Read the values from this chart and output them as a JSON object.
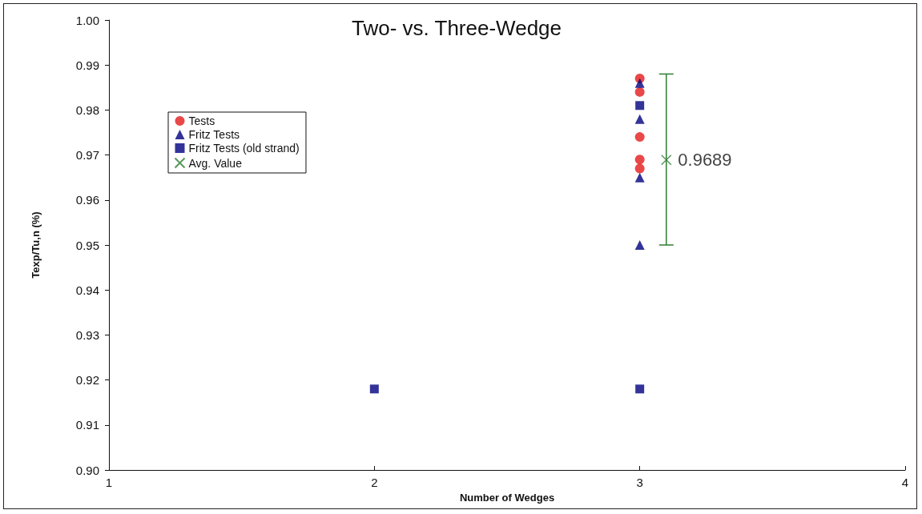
{
  "chart_data": {
    "type": "scatter",
    "title": "Two- vs. Three-Wedge",
    "xlabel": "Number of Wedges",
    "ylabel": "Texp/Tu,n (%)",
    "xlim": [
      1,
      4
    ],
    "xticks": [
      1,
      2,
      3,
      4
    ],
    "ylim": [
      0.9,
      1.0
    ],
    "yticks": [
      {
        "value": 0.9,
        "label": "0.90"
      },
      {
        "value": 0.91,
        "label": "0.91"
      },
      {
        "value": 0.92,
        "label": "0.92"
      },
      {
        "value": 0.93,
        "label": "0.93"
      },
      {
        "value": 0.94,
        "label": "0.94"
      },
      {
        "value": 0.95,
        "label": "0.95"
      },
      {
        "value": 0.96,
        "label": "0.96"
      },
      {
        "value": 0.97,
        "label": "0.97"
      },
      {
        "value": 0.98,
        "label": "0.98"
      },
      {
        "value": 0.99,
        "label": "0.99"
      },
      {
        "value": 1.0,
        "label": "1.00"
      }
    ],
    "grid": false,
    "legend": "top left",
    "series": [
      {
        "name": "Tests",
        "color": "#e31a1c",
        "marker": "circle",
        "x": [
          3,
          3,
          3,
          3,
          3
        ],
        "values": [
          0.987,
          0.984,
          0.974,
          0.969,
          0.967
        ]
      },
      {
        "name": "Fritz Tests",
        "color": "#000080",
        "marker": "triangle",
        "x": [
          3,
          3,
          3,
          3
        ],
        "values": [
          0.986,
          0.978,
          0.965,
          0.95
        ]
      },
      {
        "name": "Fritz Tests (old strand)",
        "color": "#000080",
        "marker": "square",
        "x": [
          2,
          3,
          3
        ],
        "values": [
          0.918,
          0.981,
          0.918
        ]
      },
      {
        "name": "Avg. Value",
        "color": "#2e7d32",
        "marker": "cross",
        "x": [
          3.1
        ],
        "values": [
          0.9689
        ],
        "errors": [
          [
            0.95,
            0.988
          ]
        ],
        "value_labels": [
          "0.9689"
        ]
      }
    ]
  }
}
